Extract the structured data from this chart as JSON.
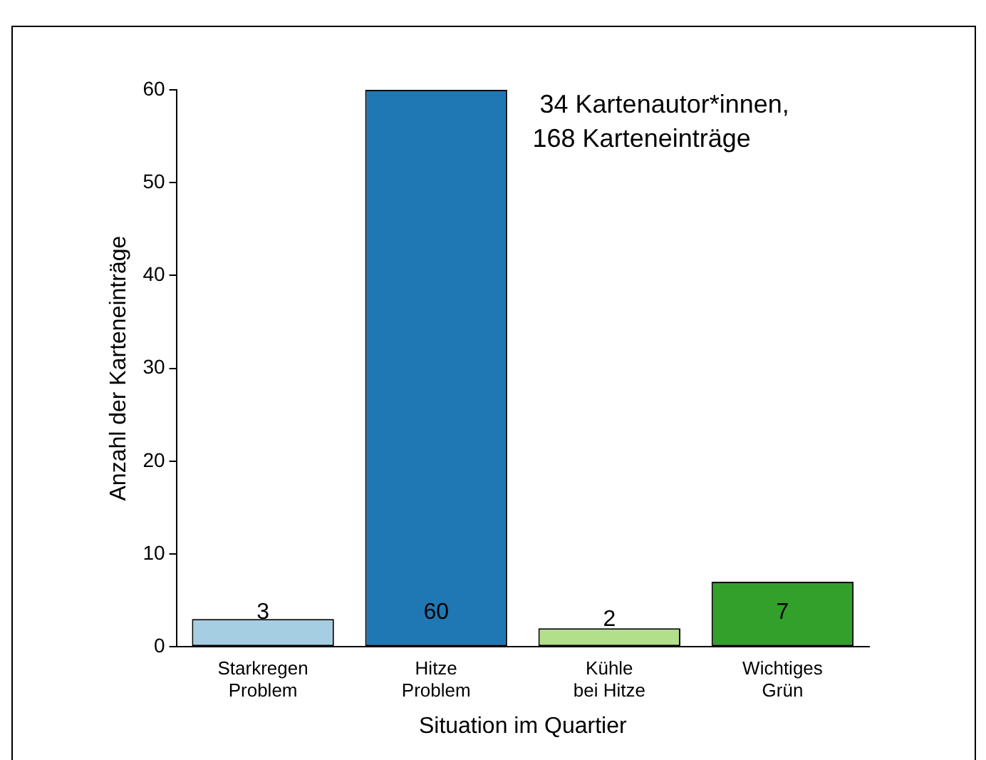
{
  "chart_data": {
    "type": "bar",
    "categories": [
      "Starkregen\nProblem",
      "Hitze\nProblem",
      "Kühle\nbei Hitze",
      "Wichtiges\nGrün"
    ],
    "values": [
      3,
      60,
      2,
      7
    ],
    "colors": [
      "#a6cee3",
      "#1f78b4",
      "#b2df8a",
      "#33a02c"
    ],
    "xlabel": "Situation im Quartier",
    "ylabel": "Anzahl der Karteneinträge",
    "ylim": [
      0,
      60
    ],
    "yticks": [
      0,
      10,
      20,
      30,
      40,
      50,
      60
    ],
    "annotations": [
      "34 Kartenautor*innen,\n168 Karteneinträge"
    ],
    "data_labels": true,
    "grid": false,
    "legend": false
  }
}
